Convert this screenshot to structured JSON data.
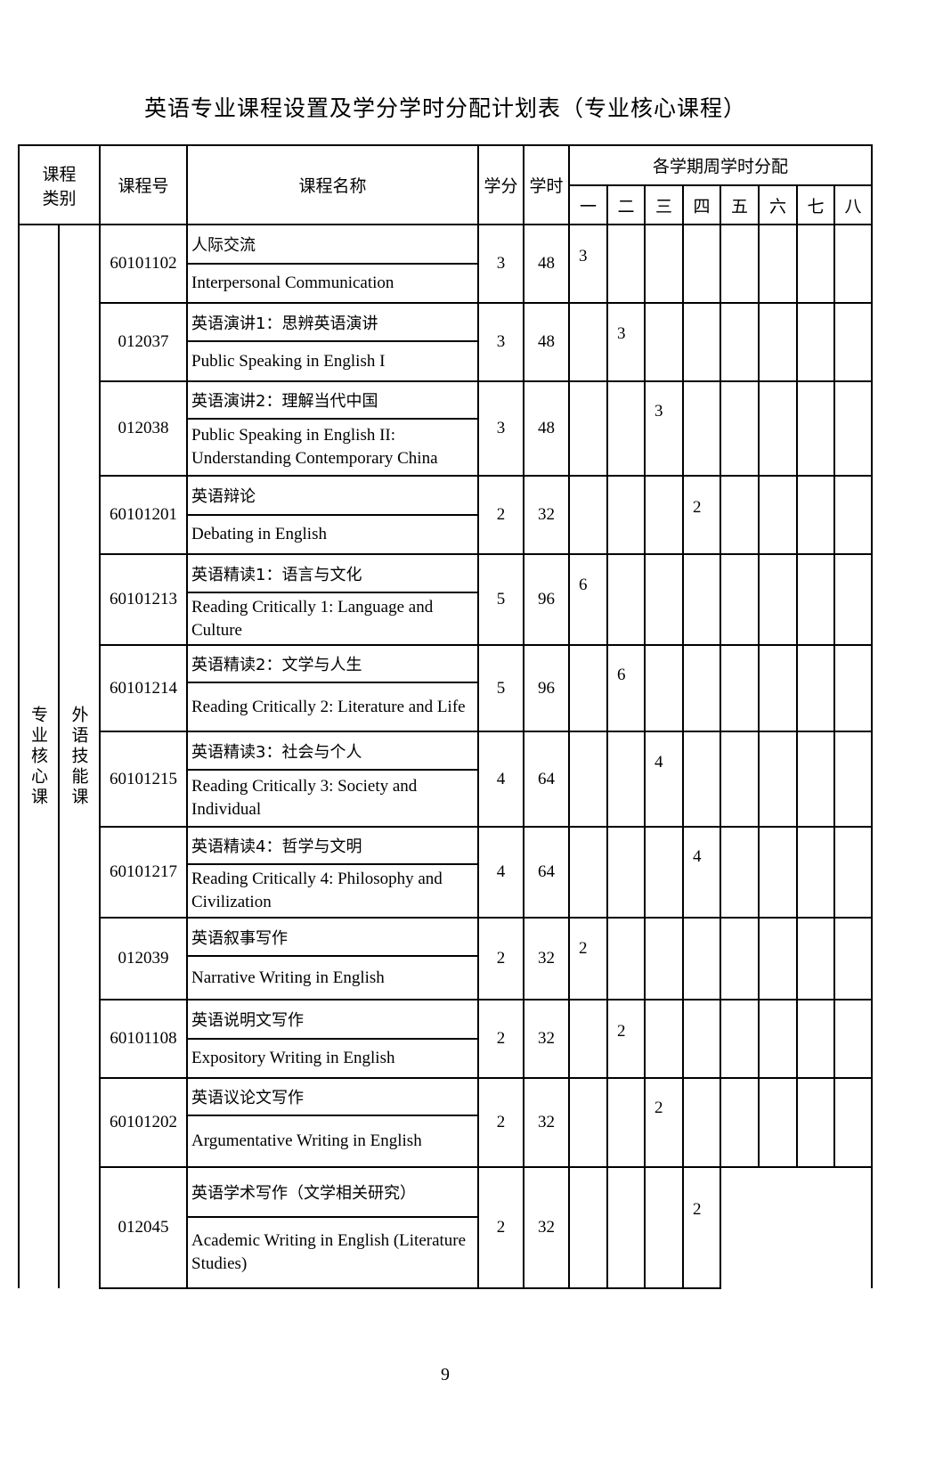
{
  "title": "英语专业课程设置及学分学时分配计划表（专业核心课程）",
  "header": {
    "category": "课程类别",
    "code": "课程号",
    "name": "课程名称",
    "credit": "学分",
    "hours": "学时",
    "semester_group": "各学期周学时分配",
    "semesters": [
      "一",
      "二",
      "三",
      "四",
      "五",
      "六",
      "七",
      "八"
    ]
  },
  "category": {
    "level1": "专业核心课",
    "level2": "外语技能课"
  },
  "rows": [
    {
      "code": "60101102",
      "cn": "人际交流",
      "en": "Interpersonal Communication",
      "credit": "3",
      "hours": "48",
      "sem": [
        "3",
        "",
        "",
        "",
        "",
        "",
        "",
        ""
      ]
    },
    {
      "code": "012037",
      "cn": "英语演讲1：思辨英语演讲",
      "en": "Public Speaking in English I",
      "credit": "3",
      "hours": "48",
      "sem": [
        "",
        "3",
        "",
        "",
        "",
        "",
        "",
        ""
      ]
    },
    {
      "code": "012038",
      "cn": "英语演讲2：理解当代中国",
      "en": "Public Speaking in English II: Understanding Contemporary China",
      "credit": "3",
      "hours": "48",
      "sem": [
        "",
        "",
        "3",
        "",
        "",
        "",
        "",
        ""
      ]
    },
    {
      "code": "60101201",
      "cn": "英语辩论",
      "en": "Debating in English",
      "credit": "2",
      "hours": "32",
      "sem": [
        "",
        "",
        "",
        "2",
        "",
        "",
        "",
        ""
      ]
    },
    {
      "code": "60101213",
      "cn": "英语精读1：语言与文化",
      "en": "Reading Critically 1: Language and Culture",
      "credit": "5",
      "hours": "96",
      "sem": [
        "6",
        "",
        "",
        "",
        "",
        "",
        "",
        ""
      ]
    },
    {
      "code": "60101214",
      "cn": "英语精读2：文学与人生",
      "en": "Reading Critically 2: Literature and Life",
      "credit": "5",
      "hours": "96",
      "sem": [
        "",
        "6",
        "",
        "",
        "",
        "",
        "",
        ""
      ]
    },
    {
      "code": "60101215",
      "cn": "英语精读3：社会与个人",
      "en": "Reading Critically 3: Society and Individual",
      "credit": "4",
      "hours": "64",
      "sem": [
        "",
        "",
        "4",
        "",
        "",
        "",
        "",
        ""
      ]
    },
    {
      "code": "60101217",
      "cn": "英语精读4：哲学与文明",
      "en": "Reading Critically 4: Philosophy and Civilization",
      "credit": "4",
      "hours": "64",
      "sem": [
        "",
        "",
        "",
        "4",
        "",
        "",
        "",
        ""
      ]
    },
    {
      "code": "012039",
      "cn": "英语叙事写作",
      "en": "Narrative Writing in English",
      "credit": "2",
      "hours": "32",
      "sem": [
        "2",
        "",
        "",
        "",
        "",
        "",
        "",
        ""
      ]
    },
    {
      "code": "60101108",
      "cn": "英语说明文写作",
      "en": "Expository Writing in English",
      "credit": "2",
      "hours": "32",
      "sem": [
        "",
        "2",
        "",
        "",
        "",
        "",
        "",
        ""
      ]
    },
    {
      "code": "60101202",
      "cn": "英语议论文写作",
      "en": "Argumentative Writing in English",
      "credit": "2",
      "hours": "32",
      "sem": [
        "",
        "",
        "2",
        "",
        "",
        "",
        "",
        ""
      ]
    },
    {
      "code": "012045",
      "cn": "英语学术写作（文学相关研究）",
      "en": "Academic Writing in English (Literature  Studies)",
      "credit": "2",
      "hours": "32",
      "sem": [
        "",
        "",
        "",
        "2",
        "",
        "",
        "",
        ""
      ]
    }
  ],
  "page_number": "9"
}
